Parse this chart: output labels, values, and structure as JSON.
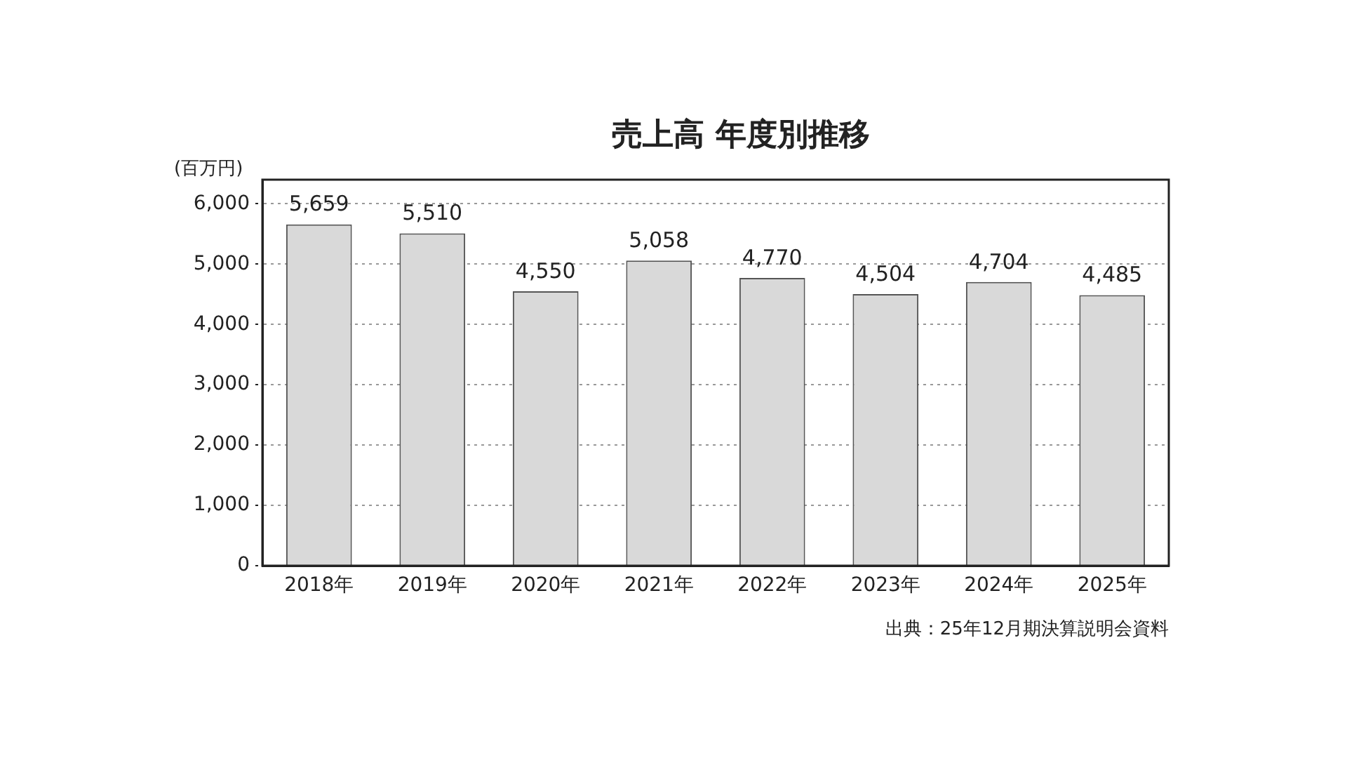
{
  "chart_data": {
    "type": "bar",
    "title": "売上高 年度別推移",
    "ylabel": "(百万円)",
    "categories": [
      "2018年",
      "2019年",
      "2020年",
      "2021年",
      "2022年",
      "2023年",
      "2024年",
      "2025年"
    ],
    "values": [
      5659,
      5510,
      4550,
      5058,
      4770,
      4504,
      4704,
      4485
    ],
    "value_labels": [
      "5,659",
      "5,510",
      "4,550",
      "5,058",
      "4,770",
      "4,504",
      "4,704",
      "4,485"
    ],
    "color": "#d9d9d9",
    "ylim": [
      0,
      6400
    ],
    "yticks": [
      0,
      {
        "value": 1000,
        "label": "1,000"
      },
      {
        "value": 2000,
        "label": "2,000"
      },
      {
        "value": 3000,
        "label": "3,000"
      },
      {
        "value": 4000,
        "label": "4,000"
      },
      {
        "value": 5000,
        "label": "5,000"
      },
      {
        "value": 6000,
        "label": "6,000"
      }
    ],
    "grid": "y",
    "legend": false,
    "annotations": [
      "出典：25年12月期決算説明会資料"
    ]
  }
}
